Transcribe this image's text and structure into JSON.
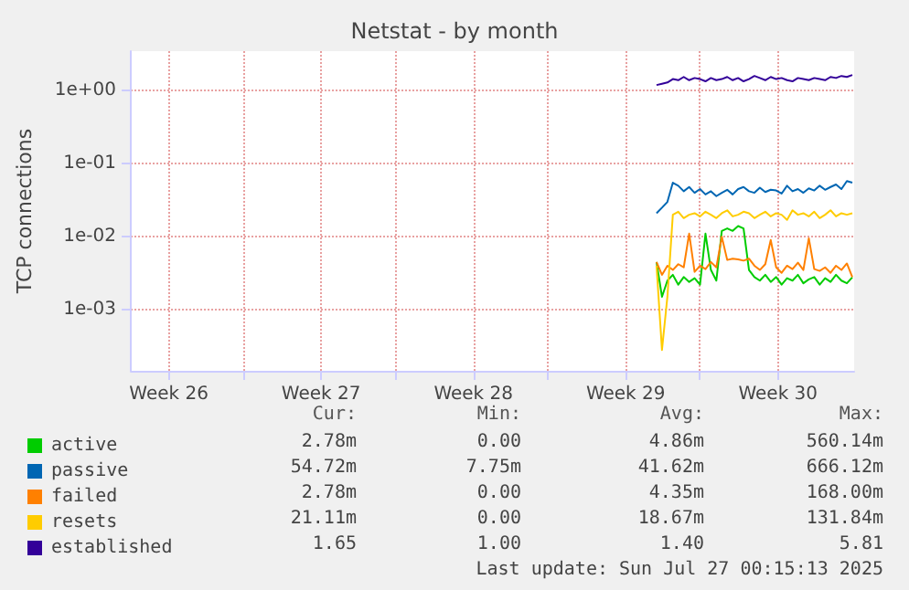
{
  "chart_data": {
    "type": "line",
    "title": "Netstat - by month",
    "ylabel": "TCP connections",
    "log": "y",
    "grid": true,
    "legend": "bottom",
    "marker": "none",
    "line_style": "solid",
    "x": [
      "2025-07-18T00:00",
      "2025-07-18T06:00",
      "2025-07-18T12:00",
      "2025-07-18T18:00",
      "2025-07-19T00:00",
      "2025-07-19T06:00",
      "2025-07-19T12:00",
      "2025-07-19T18:00",
      "2025-07-20T00:00",
      "2025-07-20T06:00",
      "2025-07-20T12:00",
      "2025-07-20T18:00",
      "2025-07-21T00:00",
      "2025-07-21T06:00",
      "2025-07-21T12:00",
      "2025-07-21T18:00",
      "2025-07-22T00:00",
      "2025-07-22T06:00",
      "2025-07-22T12:00",
      "2025-07-22T18:00",
      "2025-07-23T00:00",
      "2025-07-23T06:00",
      "2025-07-23T12:00",
      "2025-07-23T18:00",
      "2025-07-24T00:00",
      "2025-07-24T06:00",
      "2025-07-24T12:00",
      "2025-07-24T18:00",
      "2025-07-25T00:00",
      "2025-07-25T06:00",
      "2025-07-25T12:00",
      "2025-07-25T18:00",
      "2025-07-26T00:00",
      "2025-07-26T06:00",
      "2025-07-26T12:00",
      "2025-07-26T18:00",
      "2025-07-27T00:00"
    ],
    "xlim": [
      "2025-06-23T20:00",
      "2025-07-27T02:00"
    ],
    "xticks": [
      {
        "value": "2025-06-25T14:00",
        "label": "Week 26"
      },
      {
        "value": "2025-06-29T00:00",
        "label": null
      },
      {
        "value": "2025-07-02T14:00",
        "label": "Week 27"
      },
      {
        "value": "2025-07-06T00:00",
        "label": null
      },
      {
        "value": "2025-07-09T14:00",
        "label": "Week 28"
      },
      {
        "value": "2025-07-13T00:00",
        "label": null
      },
      {
        "value": "2025-07-16T14:00",
        "label": "Week 29"
      },
      {
        "value": "2025-07-20T00:00",
        "label": null
      },
      {
        "value": "2025-07-23T14:00",
        "label": "Week 30"
      }
    ],
    "ylim": [
      0.000145,
      3.5
    ],
    "yticks": [
      {
        "value": 0.001,
        "label": "1e-03"
      },
      {
        "value": 0.01,
        "label": "1e-02"
      },
      {
        "value": 0.1,
        "label": "1e-01"
      },
      {
        "value": 1,
        "label": "1e+00"
      }
    ],
    "series": [
      {
        "name": "active",
        "color": "#00cc00",
        "values": [
          0.0045,
          0.0015,
          0.0025,
          0.003,
          0.0022,
          0.0028,
          0.0024,
          0.0027,
          0.0022,
          0.011,
          0.0035,
          0.0025,
          0.012,
          0.013,
          0.012,
          0.014,
          0.013,
          0.0035,
          0.0028,
          0.0025,
          0.003,
          0.0024,
          0.0028,
          0.0022,
          0.0027,
          0.0025,
          0.003,
          0.0023,
          0.0026,
          0.0028,
          0.0022,
          0.0027,
          0.0024,
          0.003,
          0.0025,
          0.0023,
          0.00278
        ]
      },
      {
        "name": "passive",
        "color": "#0066b3",
        "values": [
          0.021,
          0.025,
          0.03,
          0.055,
          0.05,
          0.042,
          0.048,
          0.04,
          0.045,
          0.038,
          0.042,
          0.036,
          0.04,
          0.044,
          0.038,
          0.045,
          0.048,
          0.042,
          0.04,
          0.047,
          0.041,
          0.044,
          0.043,
          0.039,
          0.05,
          0.042,
          0.045,
          0.04,
          0.046,
          0.043,
          0.05,
          0.044,
          0.048,
          0.052,
          0.045,
          0.058,
          0.055
        ]
      },
      {
        "name": "failed",
        "color": "#ff8000",
        "values": [
          0.0045,
          0.003,
          0.004,
          0.0035,
          0.0042,
          0.0038,
          0.011,
          0.0033,
          0.004,
          0.0036,
          0.0045,
          0.0038,
          0.01,
          0.0048,
          0.005,
          0.0049,
          0.0047,
          0.005,
          0.004,
          0.0035,
          0.0042,
          0.009,
          0.0038,
          0.0032,
          0.004,
          0.0036,
          0.0044,
          0.0035,
          0.0095,
          0.0036,
          0.0034,
          0.0038,
          0.0032,
          0.004,
          0.0035,
          0.0043,
          0.0028
        ]
      },
      {
        "name": "resets",
        "color": "#ffcc00",
        "values": [
          0.004,
          0.00028,
          0.0015,
          0.02,
          0.022,
          0.018,
          0.02,
          0.021,
          0.019,
          0.022,
          0.02,
          0.018,
          0.021,
          0.023,
          0.019,
          0.02,
          0.022,
          0.021,
          0.018,
          0.02,
          0.022,
          0.019,
          0.021,
          0.02,
          0.017,
          0.023,
          0.02,
          0.021,
          0.019,
          0.022,
          0.018,
          0.02,
          0.023,
          0.019,
          0.021,
          0.02,
          0.021
        ]
      },
      {
        "name": "established",
        "color": "#330099",
        "values": [
          1.2,
          1.25,
          1.3,
          1.45,
          1.4,
          1.55,
          1.4,
          1.5,
          1.45,
          1.35,
          1.5,
          1.4,
          1.45,
          1.55,
          1.4,
          1.5,
          1.35,
          1.45,
          1.6,
          1.5,
          1.4,
          1.55,
          1.45,
          1.5,
          1.4,
          1.35,
          1.5,
          1.45,
          1.4,
          1.5,
          1.45,
          1.4,
          1.55,
          1.5,
          1.6,
          1.55,
          1.65
        ]
      }
    ],
    "annotations": [
      "Cur:",
      "Min:",
      "Avg:",
      "Max:",
      "2.78m",
      "0.00",
      "4.86m",
      "560.14m",
      "54.72m",
      "7.75m",
      "41.62m",
      "666.12m",
      "2.78m",
      "0.00",
      "4.35m",
      "168.00m",
      "21.11m",
      "0.00",
      "18.67m",
      "131.84m",
      "1.65",
      "1.00",
      "1.40",
      "5.81",
      "Last update: Sun Jul 27 00:15:13 2025"
    ]
  }
}
